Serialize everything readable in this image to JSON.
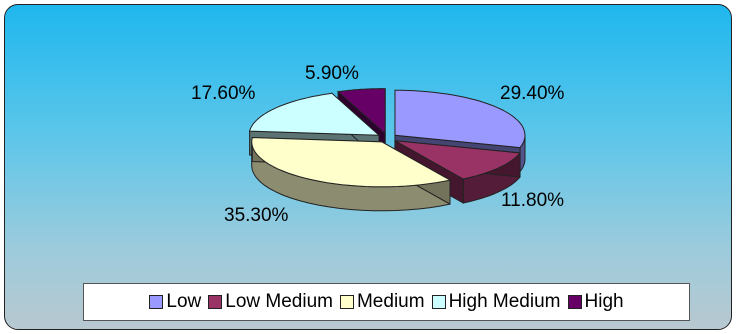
{
  "chart_data": {
    "type": "pie",
    "categories": [
      "Low",
      "Low Medium",
      "Medium",
      "High Medium",
      "High"
    ],
    "values": [
      29.4,
      11.8,
      35.3,
      17.6,
      5.9
    ],
    "data_labels": [
      "29.40%",
      "11.80%",
      "35.30%",
      "17.60%",
      "5.90%"
    ],
    "colors": [
      "#9999ff",
      "#993366",
      "#ffffcc",
      "#ccffff",
      "#660066"
    ],
    "title": "",
    "legend_position": "bottom",
    "style": "3d-exploded"
  }
}
